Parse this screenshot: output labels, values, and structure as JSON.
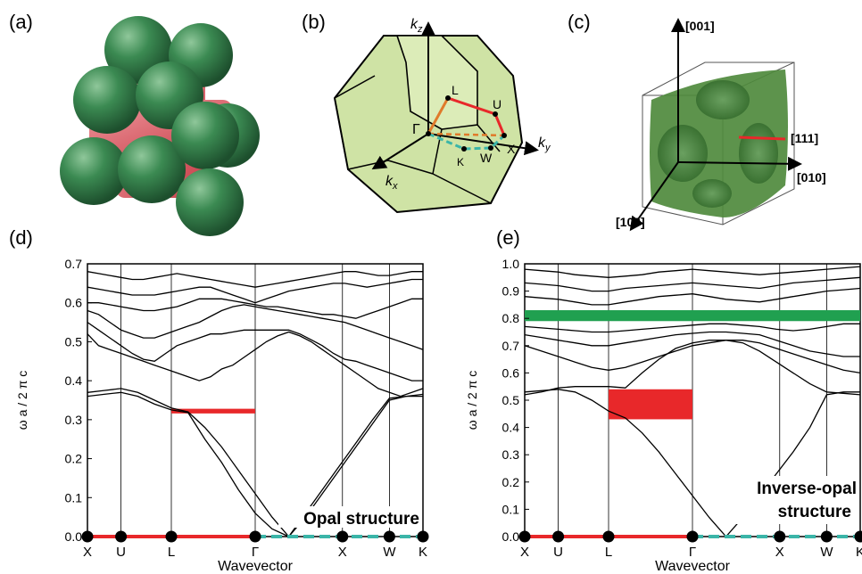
{
  "panels": {
    "a": "(a)",
    "b": "(b)",
    "c": "(c)",
    "d": "(d)",
    "e": "(e)"
  },
  "bz": {
    "axes": [
      "k_z",
      "k_y",
      "k_x"
    ],
    "points": [
      "Γ",
      "L",
      "U",
      "X",
      "W",
      "K"
    ],
    "colors": {
      "solid": "#e8282a",
      "orange": "#e07a2a",
      "dashed": "#3bb5a8",
      "fill": "#cfe3a5"
    }
  },
  "fermi": {
    "directions": [
      "[001]",
      "[111]",
      "[010]",
      "[100]"
    ],
    "colors": {
      "surface": "#4f8a3d",
      "line": "#e8282a"
    }
  },
  "sphere_colors": {
    "sphere": "#2f7a46",
    "link": "#e0636a"
  },
  "chart_data": [
    {
      "type": "line",
      "title": "Opal structure",
      "xlabel": "Wavevector",
      "ylabel": "ω a / 2 π c",
      "ylim": [
        0,
        0.7
      ],
      "yticks": [
        "0.0",
        "0.1",
        "0.2",
        "0.3",
        "0.4",
        "0.5",
        "0.6",
        "0.7"
      ],
      "xticks": [
        "X",
        "U",
        "L",
        "Γ",
        "X",
        "W",
        "K"
      ],
      "xtick_positions": [
        0,
        1,
        2.5,
        5,
        7.6,
        9,
        10
      ],
      "path_segments": [
        {
          "from": 0,
          "to": 5,
          "style": "solid",
          "color": "#e8282a"
        },
        {
          "from": 5,
          "to": 10,
          "style": "dashed",
          "color": "#3bb5a8"
        }
      ],
      "band_gap": {
        "color": "#e8282a",
        "x_range": [
          2.5,
          5
        ],
        "y_range": [
          0.316,
          0.328
        ]
      },
      "bands": [
        [
          0.52,
          0.49,
          0.48,
          0.47,
          0.46,
          0.45,
          0.44,
          0.43,
          0.42,
          0.41,
          0.4,
          0.41,
          0.43,
          0.44,
          0.46,
          0.48,
          0.5,
          0.515,
          0.525,
          0.515,
          0.5,
          0.48,
          0.46,
          0.44,
          0.42,
          0.4,
          0.38,
          0.37,
          0.36,
          0.37,
          0.38
        ],
        [
          0.55,
          0.53,
          0.51,
          0.49,
          0.47,
          0.455,
          0.45,
          0.47,
          0.49,
          0.5,
          0.51,
          0.52,
          0.52,
          0.525,
          0.53,
          0.53,
          0.53,
          0.53,
          0.53,
          0.52,
          0.505,
          0.49,
          0.47,
          0.455,
          0.45,
          0.44,
          0.43,
          0.42,
          0.41,
          0.4,
          0.4
        ],
        [
          0.58,
          0.57,
          0.55,
          0.53,
          0.52,
          0.51,
          0.51,
          0.52,
          0.53,
          0.54,
          0.55,
          0.565,
          0.58,
          0.59,
          0.595,
          0.59,
          0.585,
          0.58,
          0.575,
          0.57,
          0.565,
          0.56,
          0.555,
          0.55,
          0.54,
          0.53,
          0.52,
          0.51,
          0.5,
          0.49,
          0.48
        ],
        [
          0.6,
          0.6,
          0.595,
          0.59,
          0.585,
          0.58,
          0.58,
          0.585,
          0.59,
          0.6,
          0.61,
          0.61,
          0.61,
          0.605,
          0.6,
          0.595,
          0.59,
          0.59,
          0.585,
          0.58,
          0.575,
          0.57,
          0.57,
          0.565,
          0.56,
          0.57,
          0.58,
          0.59,
          0.6,
          0.61,
          0.61
        ],
        [
          0.64,
          0.635,
          0.63,
          0.625,
          0.62,
          0.62,
          0.62,
          0.625,
          0.63,
          0.635,
          0.64,
          0.64,
          0.63,
          0.62,
          0.61,
          0.6,
          0.61,
          0.62,
          0.63,
          0.635,
          0.64,
          0.645,
          0.65,
          0.65,
          0.645,
          0.64,
          0.645,
          0.65,
          0.655,
          0.66,
          0.66
        ],
        [
          0.68,
          0.675,
          0.67,
          0.665,
          0.66,
          0.66,
          0.665,
          0.67,
          0.675,
          0.67,
          0.665,
          0.66,
          0.655,
          0.65,
          0.645,
          0.64,
          0.645,
          0.65,
          0.655,
          0.66,
          0.665,
          0.67,
          0.675,
          0.68,
          0.68,
          0.675,
          0.67,
          0.67,
          0.675,
          0.68,
          0.68
        ]
      ],
      "low_bands": [
        [
          0.37,
          0.375,
          0.38,
          0.37,
          0.35,
          0.33,
          0.32,
          0.28,
          0.23,
          0.17,
          0.11,
          0.05,
          0.0,
          0.05,
          0.11,
          0.17,
          0.23,
          0.29,
          0.35,
          0.36,
          0.365
        ],
        [
          0.36,
          0.365,
          0.37,
          0.36,
          0.34,
          0.325,
          0.318,
          0.25,
          0.19,
          0.12,
          0.06,
          0.02,
          0.0,
          0.06,
          0.12,
          0.18,
          0.24,
          0.3,
          0.355,
          0.36,
          0.36
        ]
      ]
    },
    {
      "type": "line",
      "title": "Inverse-opal structure",
      "xlabel": "Wavevector",
      "ylabel": "ω a / 2 π c",
      "ylim": [
        0,
        1.0
      ],
      "yticks": [
        "0.0",
        "0.1",
        "0.2",
        "0.3",
        "0.4",
        "0.5",
        "0.6",
        "0.7",
        "0.8",
        "0.9",
        "1.0"
      ],
      "xticks": [
        "X",
        "U",
        "L",
        "Γ",
        "X",
        "W",
        "K"
      ],
      "xtick_positions": [
        0,
        1,
        2.5,
        5,
        7.6,
        9,
        10
      ],
      "path_segments": [
        {
          "from": 0,
          "to": 5,
          "style": "solid",
          "color": "#e8282a"
        },
        {
          "from": 5,
          "to": 10,
          "style": "dashed",
          "color": "#3bb5a8"
        }
      ],
      "band_gaps": [
        {
          "color": "#e8282a",
          "x_range": [
            2.5,
            5
          ],
          "y_range": [
            0.43,
            0.54
          ]
        },
        {
          "color": "#20a050",
          "x_range": [
            0,
            10
          ],
          "y_range": [
            0.79,
            0.83
          ]
        }
      ],
      "bands": [
        [
          0.7,
          0.68,
          0.66,
          0.64,
          0.62,
          0.61,
          0.62,
          0.64,
          0.66,
          0.68,
          0.7,
          0.71,
          0.72,
          0.72,
          0.71,
          0.69,
          0.67,
          0.65,
          0.63,
          0.61,
          0.6
        ],
        [
          0.74,
          0.73,
          0.72,
          0.71,
          0.7,
          0.7,
          0.71,
          0.72,
          0.73,
          0.74,
          0.745,
          0.75,
          0.75,
          0.745,
          0.74,
          0.72,
          0.7,
          0.68,
          0.67,
          0.66,
          0.66
        ],
        [
          0.77,
          0.765,
          0.76,
          0.755,
          0.75,
          0.75,
          0.755,
          0.76,
          0.765,
          0.77,
          0.775,
          0.78,
          0.78,
          0.775,
          0.77,
          0.76,
          0.755,
          0.76,
          0.77,
          0.78,
          0.78
        ],
        [
          0.88,
          0.875,
          0.87,
          0.86,
          0.85,
          0.85,
          0.86,
          0.87,
          0.88,
          0.885,
          0.89,
          0.88,
          0.87,
          0.865,
          0.86,
          0.87,
          0.88,
          0.89,
          0.9,
          0.905,
          0.91
        ],
        [
          0.93,
          0.925,
          0.92,
          0.91,
          0.9,
          0.9,
          0.91,
          0.915,
          0.92,
          0.925,
          0.93,
          0.925,
          0.92,
          0.915,
          0.91,
          0.92,
          0.93,
          0.935,
          0.94,
          0.945,
          0.95
        ],
        [
          0.98,
          0.975,
          0.97,
          0.96,
          0.955,
          0.95,
          0.955,
          0.96,
          0.97,
          0.975,
          0.98,
          0.975,
          0.97,
          0.965,
          0.96,
          0.965,
          0.97,
          0.975,
          0.98,
          0.985,
          0.99
        ]
      ],
      "low_bands": [
        [
          0.53,
          0.535,
          0.54,
          0.53,
          0.5,
          0.46,
          0.435,
          0.38,
          0.31,
          0.23,
          0.15,
          0.07,
          0.0,
          0.07,
          0.15,
          0.23,
          0.31,
          0.4,
          0.52,
          0.53,
          0.53
        ],
        [
          0.52,
          0.53,
          0.545,
          0.55,
          0.55,
          0.55,
          0.545,
          0.6,
          0.65,
          0.69,
          0.71,
          0.72,
          0.72,
          0.71,
          0.68,
          0.64,
          0.6,
          0.56,
          0.53,
          0.525,
          0.52
        ]
      ]
    }
  ]
}
